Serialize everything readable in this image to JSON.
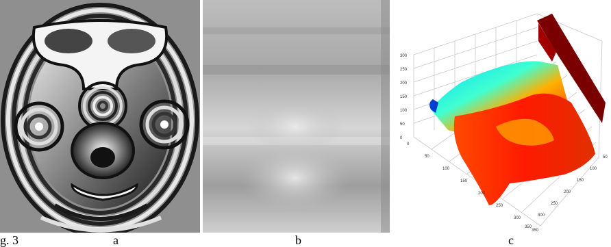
{
  "figure": {
    "label": "g. 3",
    "panels": [
      {
        "id": "a",
        "label": "a",
        "content": "wrapped phase fringe pattern of a face"
      },
      {
        "id": "b",
        "label": "b",
        "content": "unwrapped phase grayscale image"
      },
      {
        "id": "c",
        "label": "c",
        "content": "3D surface reconstruction"
      }
    ]
  },
  "plot_c": {
    "z_ticks": [
      "300",
      "250",
      "200",
      "150",
      "100",
      "50",
      "0"
    ],
    "y_ticks": [
      "0",
      "50",
      "100",
      "150",
      "200",
      "250",
      "300",
      "350"
    ],
    "x_ticks": [
      "350",
      "300",
      "250",
      "200",
      "150",
      "100",
      "50"
    ],
    "colormap": [
      "#00007f",
      "#0050ff",
      "#00e0ff",
      "#70ff90",
      "#ffd000",
      "#ff3000",
      "#800000"
    ]
  }
}
